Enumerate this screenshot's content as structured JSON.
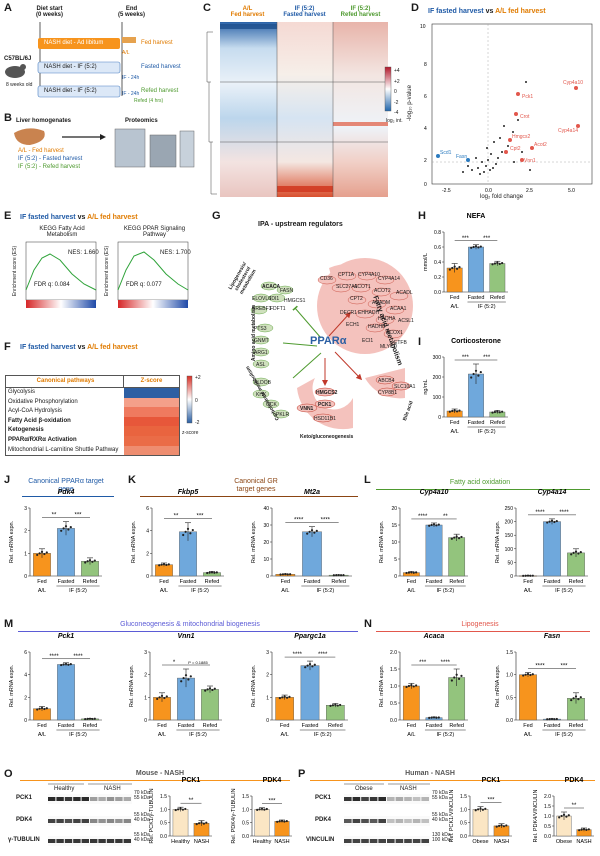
{
  "panel_letters": [
    "A",
    "B",
    "C",
    "D",
    "E",
    "F",
    "G",
    "H",
    "I",
    "J",
    "K",
    "L",
    "M",
    "N",
    "O",
    "P"
  ],
  "panelA": {
    "diet_start": "Diet start",
    "diet_start_weeks": "(0 weeks)",
    "end": "End",
    "end_weeks": "(5 weeks)",
    "mouse_strain": "C57BL/6J",
    "mouse_age": "8 weeks old",
    "rows": [
      {
        "diet": "NASH diet - Ad libitum",
        "harvest": "Fed harvest",
        "label": "A/L",
        "note": ""
      },
      {
        "diet": "NASH diet - IF (5:2)",
        "harvest": "Fasted harvest",
        "label": "",
        "note": "IF - 24h"
      },
      {
        "diet": "NASH diet - IF (5:2)",
        "harvest": "Refed harvest",
        "label": "",
        "note": "IF - 24h",
        "subnote": "Refed (4 hrs)"
      }
    ]
  },
  "panelB": {
    "title": "Liver homogenates",
    "right_title": "Proteomics",
    "groups": [
      "A/L - Fed harvest",
      "IF (5:2) - Fasted harvest",
      "IF (5:2) - Refed harvest"
    ]
  },
  "panelC": {
    "columns": [
      {
        "label": "A/L",
        "sub": "Fed harvest"
      },
      {
        "label": "IF (5:2)",
        "sub": "Fasted harvest"
      },
      {
        "label": "IF (5:2)",
        "sub": "Refed harvest"
      }
    ],
    "scale_ticks": [
      "+4",
      "+2",
      "0",
      "-2",
      "-4"
    ],
    "scale_label": "log₂ int."
  },
  "panelD": {
    "title_a": "IF fasted harvest",
    "title_vs": "vs",
    "title_b": "A/L fed harvest",
    "xlabel": "log₂ fold change",
    "ylabel": "-log₁₀ p-value"
  },
  "panelE": {
    "title_a": "IF fasted harvest",
    "title_vs": "vs",
    "title_b": "A/L fed harvest",
    "plots": [
      {
        "title": "KEGG Fatty Acid Metabolism",
        "nes": "NES: 1.660",
        "fdr": "FDR q: 0.084"
      },
      {
        "title": "KEGG PPAR Signaling Pathway",
        "nes": "NES: 1.700",
        "fdr": "FDR q: 0.077"
      }
    ],
    "ylabel": "Enrichment score (ES)"
  },
  "panelF": {
    "title_a": "IF fasted harvest",
    "title_vs": "vs",
    "title_b": "A/L fed harvest",
    "col1": "Canonical pathways",
    "col2": "Z-score",
    "rows": [
      "Glycolysis",
      "Oxidative Phosphorylation",
      "Acyl-CoA Hydrolysis",
      "Fatty Acid β-oxidation",
      "Ketogenesis",
      "PPARα/RXRα Activation",
      "Mitochondrial L-carnitine Shuttle Pathway"
    ],
    "scale_ticks": [
      "+2",
      "0",
      "-2"
    ],
    "scale_label": "z-score"
  },
  "panelG": {
    "title": "IPA - upstream regulators",
    "center": "PPARα",
    "groups": [
      "Fatty acid metabolism",
      "Lipogenesis/ cholesterol metabolism",
      "Amino acid metabolism",
      "Carbohydrate metabolism",
      "Keto/gluconeogenesis",
      "Bile acid"
    ],
    "fa_genes": [
      "CD36",
      "CPT1A",
      "CYP4A10",
      "CYP4A14",
      "ACOT1",
      "ACOT2",
      "SLC27A1",
      "CPT2",
      "ACADM",
      "ACAA1",
      "EHHADH",
      "HADHA",
      "HADHB",
      "ACOX1",
      "ECH1",
      "ACADL",
      "ACSL1",
      "DECR1",
      "ETFB",
      "MLYCD",
      "ECI1"
    ],
    "lipo_genes": [
      "ACACA",
      "FASN",
      "ELOVL6",
      "IDI1",
      "SREBF1",
      "FDFT1",
      "HMGCS1"
    ],
    "amino_genes": [
      "PTS3",
      "GNMT",
      "ARG1",
      "ASL"
    ],
    "carb_genes": [
      "ALDOB",
      "KHK",
      "GCK",
      "PKLR"
    ],
    "keto_genes": [
      "HMGCS2",
      "PCK1",
      "VNN1",
      "HSD11B1"
    ],
    "bile_genes": [
      "ABCB4",
      "CYP8B1",
      "SLC10A1"
    ]
  },
  "conditions": {
    "fed": "Fed",
    "fasted": "Fasted",
    "refed": "Refed",
    "al": "A/L",
    "if": "IF (5:2)"
  },
  "section_titles": {
    "J": "Canonical PPARα target gene",
    "K": "Canonical GR target genes",
    "L": "Fatty acid oxidation",
    "M": "Gluconeogenesis & mitochondrial biogenesis",
    "N": "Lipogenesis",
    "O": "Mouse - NASH",
    "P": "Human - NASH"
  },
  "colors": {
    "fed": "#f7941d",
    "fasted": "#6fa8dc",
    "refed": "#93c47d",
    "blue_title": "#1f5aa6",
    "orange_title": "#e07b00",
    "red": "#e2574c",
    "green": "#4e9a2f",
    "brown": "#8b4513",
    "purple": "#5b5bd6"
  },
  "chart_data": [
    {
      "id": "H",
      "type": "bar",
      "title": "NEFA",
      "ylabel": "mmol/L",
      "ylim": [
        0,
        0.8
      ],
      "yticks": [
        "0.0",
        "0.2",
        "0.4",
        "0.6",
        "0.8"
      ],
      "categories": [
        "Fed",
        "Fasted",
        "Refed"
      ],
      "values": [
        0.32,
        0.6,
        0.38
      ],
      "errors": [
        0.06,
        0.03,
        0.03
      ],
      "sig": [
        "***",
        "***"
      ]
    },
    {
      "id": "I",
      "type": "bar",
      "title": "Corticosterone",
      "ylabel": "ng/mL",
      "ylim": [
        0,
        300
      ],
      "yticks": [
        "0",
        "100",
        "200",
        "300"
      ],
      "categories": [
        "Fed",
        "Fasted",
        "Refed"
      ],
      "values": [
        30,
        215,
        25
      ],
      "errors": [
        10,
        50,
        8
      ],
      "sig": [
        "***",
        "***"
      ]
    },
    {
      "id": "J1",
      "type": "bar",
      "title": "Pdk4",
      "ylabel": "Rel. mRNA expn.",
      "ylim": [
        0,
        3
      ],
      "yticks": [
        "0",
        "1",
        "2",
        "3"
      ],
      "categories": [
        "Fed",
        "Fasted",
        "Refed"
      ],
      "values": [
        1.0,
        2.1,
        0.65
      ],
      "errors": [
        0.2,
        0.3,
        0.15
      ],
      "sig": [
        "**",
        "***"
      ]
    },
    {
      "id": "K1",
      "type": "bar",
      "title": "Fkbp5",
      "ylabel": "Rel. mRNA expn.",
      "ylim": [
        0,
        6
      ],
      "yticks": [
        "0",
        "2",
        "4",
        "6"
      ],
      "categories": [
        "Fed",
        "Fasted",
        "Refed"
      ],
      "values": [
        1.0,
        3.9,
        0.3
      ],
      "errors": [
        0.15,
        0.8,
        0.1
      ],
      "sig": [
        "**",
        "***"
      ]
    },
    {
      "id": "K2",
      "type": "bar",
      "title": "Mt2a",
      "ylabel": "Rel. mRNA expn.",
      "ylim": [
        0,
        40
      ],
      "yticks": [
        "0",
        "10",
        "20",
        "30",
        "40"
      ],
      "categories": [
        "Fed",
        "Fasted",
        "Refed"
      ],
      "values": [
        1.0,
        26,
        0.5
      ],
      "errors": [
        0.3,
        3,
        0.2
      ],
      "sig": [
        "****",
        "****"
      ]
    },
    {
      "id": "L1",
      "type": "bar",
      "title": "Cyp4a10",
      "ylabel": "Rel. mRNA expn.",
      "ylim": [
        0,
        20
      ],
      "yticks": [
        "0",
        "5",
        "10",
        "15",
        "20"
      ],
      "categories": [
        "Fed",
        "Fasted",
        "Refed"
      ],
      "values": [
        1.0,
        15,
        11.3
      ],
      "errors": [
        0.3,
        0.6,
        1.0
      ],
      "sig": [
        "****",
        "**"
      ]
    },
    {
      "id": "L2",
      "type": "bar",
      "title": "Cyp4a14",
      "ylabel": "Rel. mRNA expn.",
      "ylim": [
        0,
        250
      ],
      "yticks": [
        "0",
        "50",
        "100",
        "150",
        "200",
        "250"
      ],
      "categories": [
        "Fed",
        "Fasted",
        "Refed"
      ],
      "values": [
        1.0,
        200,
        85
      ],
      "errors": [
        1,
        10,
        15
      ],
      "sig": [
        "****",
        "****"
      ]
    },
    {
      "id": "M1",
      "type": "bar",
      "title": "Pck1",
      "ylabel": "Rel. mRNA expn.",
      "ylim": [
        0,
        6
      ],
      "yticks": [
        "0",
        "2",
        "4",
        "6"
      ],
      "categories": [
        "Fed",
        "Fasted",
        "Refed"
      ],
      "values": [
        1.0,
        4.9,
        0.1
      ],
      "errors": [
        0.2,
        0.15,
        0.05
      ],
      "sig": [
        "****",
        "****"
      ]
    },
    {
      "id": "M2",
      "type": "bar",
      "title": "Vnn1",
      "ylabel": "Rel. mRNA expn.",
      "ylim": [
        0,
        3
      ],
      "yticks": [
        "0",
        "1",
        "2",
        "3"
      ],
      "categories": [
        "Fed",
        "Fasted",
        "Refed"
      ],
      "values": [
        1.0,
        1.85,
        1.35
      ],
      "errors": [
        0.2,
        0.4,
        0.15
      ],
      "sig": [
        "*",
        "P = 0.1885"
      ]
    },
    {
      "id": "M3",
      "type": "bar",
      "title": "Ppargc1a",
      "ylabel": "Rel. mRNA expn.",
      "ylim": [
        0,
        3
      ],
      "yticks": [
        "0",
        "1",
        "2",
        "3"
      ],
      "categories": [
        "Fed",
        "Fasted",
        "Refed"
      ],
      "values": [
        1.0,
        2.4,
        0.65
      ],
      "errors": [
        0.1,
        0.2,
        0.08
      ],
      "sig": [
        "****",
        "****"
      ]
    },
    {
      "id": "N1",
      "type": "bar",
      "title": "Acaca",
      "ylabel": "Rel. mRNA expn.",
      "ylim": [
        0,
        2.0
      ],
      "yticks": [
        "0.0",
        "0.5",
        "1.0",
        "1.5",
        "2.0"
      ],
      "categories": [
        "Fed",
        "Fasted",
        "Refed"
      ],
      "values": [
        1.0,
        0.07,
        1.25
      ],
      "errors": [
        0.08,
        0.02,
        0.25
      ],
      "sig": [
        "***",
        "****"
      ]
    },
    {
      "id": "N2",
      "type": "bar",
      "title": "Fasn",
      "ylabel": "Rel. mRNA expn.",
      "ylim": [
        0,
        1.5
      ],
      "yticks": [
        "0.0",
        "0.5",
        "1.0",
        "1.5"
      ],
      "categories": [
        "Fed",
        "Fasted",
        "Refed"
      ],
      "values": [
        1.0,
        0.02,
        0.48
      ],
      "errors": [
        0.05,
        0.01,
        0.12
      ],
      "sig": [
        "****",
        "***"
      ]
    },
    {
      "id": "O1",
      "type": "bar",
      "title": "PCK1",
      "ylabel": "Rel. PCK1/γ-TUBULIN",
      "ylim": [
        0,
        1.5
      ],
      "yticks": [
        "0.0",
        "0.5",
        "1.0",
        "1.5"
      ],
      "categories": [
        "Healthy",
        "NASH"
      ],
      "values": [
        1.0,
        0.48
      ],
      "errors": [
        0.08,
        0.1
      ],
      "sig": [
        "**"
      ]
    },
    {
      "id": "O2",
      "type": "bar",
      "title": "PDK4",
      "ylabel": "Rel. PDK4/γ-TUBULIN",
      "ylim": [
        0,
        1.5
      ],
      "yticks": [
        "0.0",
        "0.5",
        "1.0",
        "1.5"
      ],
      "categories": [
        "Healthy",
        "NASH"
      ],
      "values": [
        1.0,
        0.55
      ],
      "errors": [
        0.06,
        0.05
      ],
      "sig": [
        "***"
      ]
    },
    {
      "id": "P1",
      "type": "bar",
      "title": "PCK1",
      "ylabel": "Rel. PCK1/VINCULIN",
      "ylim": [
        0,
        1.5
      ],
      "yticks": [
        "0.0",
        "0.5",
        "1.0",
        "1.5"
      ],
      "categories": [
        "Obese",
        "NASH"
      ],
      "values": [
        1.0,
        0.38
      ],
      "errors": [
        0.1,
        0.08
      ],
      "sig": [
        "***"
      ]
    },
    {
      "id": "P2",
      "type": "bar",
      "title": "PDK4",
      "ylabel": "Rel. PDK4/VINCULIN",
      "ylim": [
        0,
        2.0
      ],
      "yticks": [
        "0.0",
        "0.5",
        "1.0",
        "1.5",
        "2.0"
      ],
      "categories": [
        "Obese",
        "NASH"
      ],
      "values": [
        1.0,
        0.32
      ],
      "errors": [
        0.2,
        0.08
      ],
      "sig": [
        "**"
      ]
    }
  ],
  "blotO": {
    "groups": [
      "Healthy",
      "NASH"
    ],
    "rows": [
      "PCK1",
      "PDK4",
      "γ-TUBULIN"
    ],
    "markers": [
      "70 kDa",
      "55 kDa",
      "55 kDa",
      "40 kDa",
      "55 kDa",
      "40 kDa"
    ]
  },
  "blotP": {
    "groups": [
      "Obese",
      "NASH"
    ],
    "rows": [
      "PCK1",
      "PDK4",
      "VINCULIN"
    ],
    "markers": [
      "70 kDa",
      "55 kDa",
      "55 kDa",
      "40 kDa",
      "130 kDa",
      "100 kDa"
    ]
  }
}
